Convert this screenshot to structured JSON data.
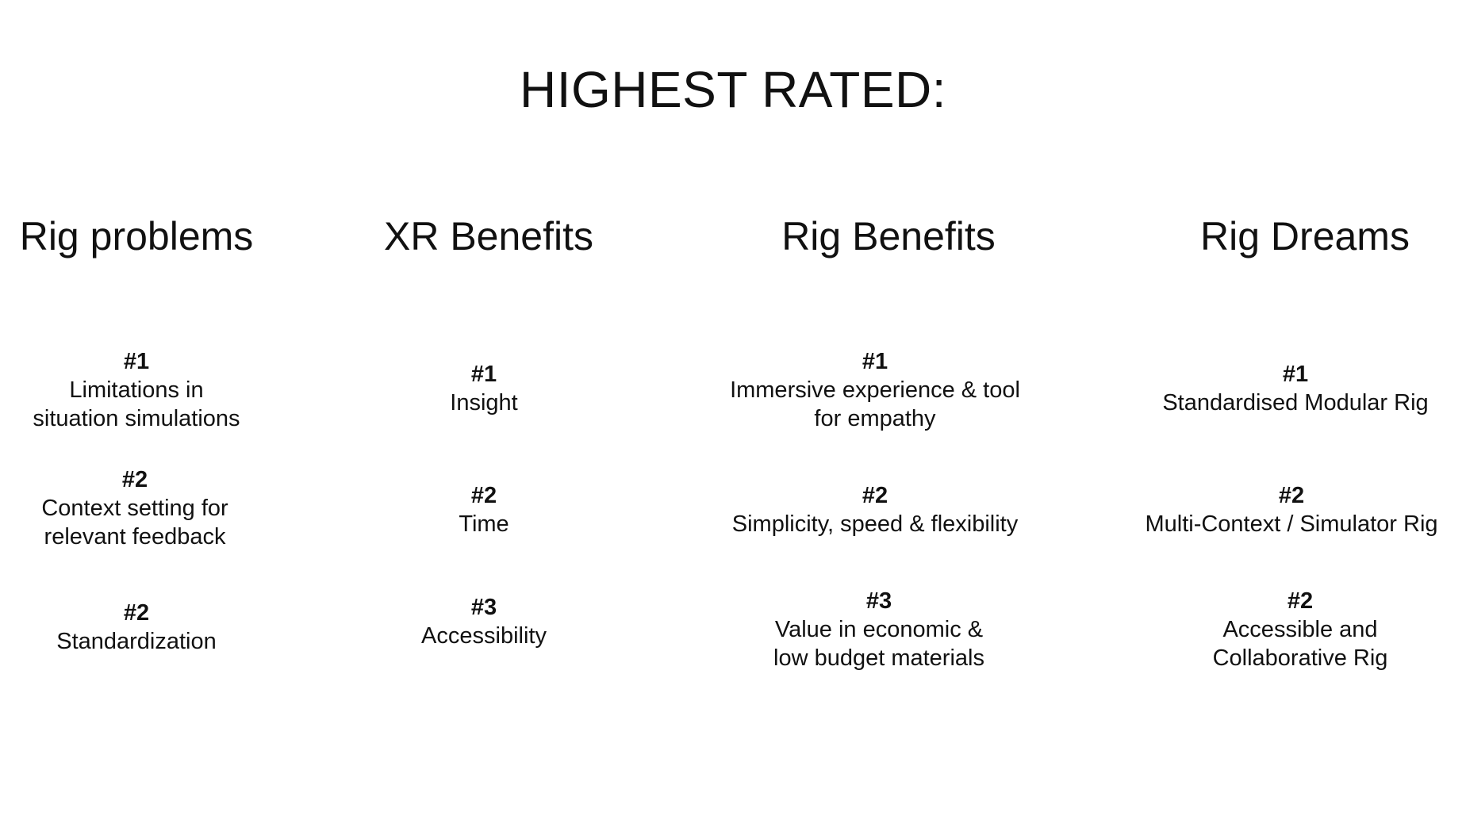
{
  "title": "HIGHEST RATED:",
  "columns": [
    {
      "heading": "Rig problems",
      "items": [
        {
          "rank": "#1",
          "text": "Limitations in\nsituation simulations"
        },
        {
          "rank": "#2",
          "text": "Context setting for\nrelevant feedback"
        },
        {
          "rank": "#2",
          "text": "Standardization"
        }
      ]
    },
    {
      "heading": "XR Benefits",
      "items": [
        {
          "rank": "#1",
          "text": "Insight"
        },
        {
          "rank": "#2",
          "text": "Time"
        },
        {
          "rank": "#3",
          "text": "Accessibility"
        }
      ]
    },
    {
      "heading": "Rig Benefits",
      "items": [
        {
          "rank": "#1",
          "text": "Immersive experience & tool\nfor empathy"
        },
        {
          "rank": "#2",
          "text": "Simplicity, speed & flexibility"
        },
        {
          "rank": "#3",
          "text": "Value in economic &\nlow budget materials"
        }
      ]
    },
    {
      "heading": "Rig Dreams",
      "items": [
        {
          "rank": "#1",
          "text": "Standardised Modular Rig"
        },
        {
          "rank": "#2",
          "text": "Multi-Context / Simulator Rig"
        },
        {
          "rank": "#2",
          "text": "Accessible and\nCollaborative Rig"
        }
      ]
    }
  ]
}
